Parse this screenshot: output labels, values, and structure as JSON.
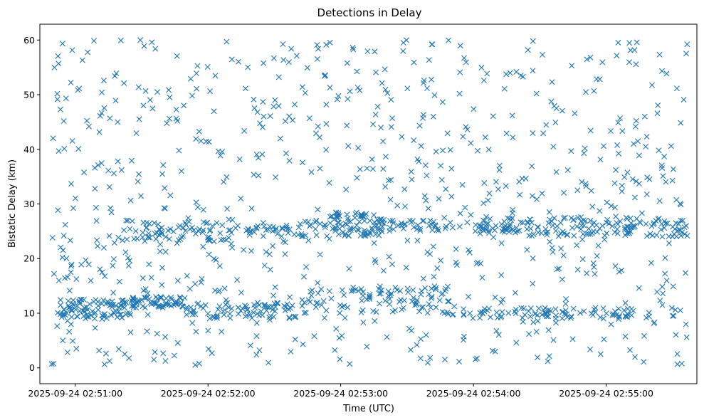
{
  "chart_data": {
    "type": "scatter",
    "title": "Detections in Delay",
    "xlabel": "Time (UTC)",
    "ylabel": "Bistatic Delay (km)",
    "marker": "x",
    "color": "#1f77b4",
    "grid": false,
    "xlim": [
      "2025-09-24 02:50:44",
      "2025-09-24 02:55:41"
    ],
    "ylim": [
      -2.9,
      62.9
    ],
    "x_ticks": [
      "2025-09-24 02:51:00",
      "2025-09-24 02:52:00",
      "2025-09-24 02:53:00",
      "2025-09-24 02:54:00",
      "2025-09-24 02:55:00"
    ],
    "y_ticks": [
      0,
      10,
      20,
      30,
      40,
      50,
      60
    ],
    "time_range": [
      "2025-09-24 02:50:49",
      "2025-09-24 02:55:37"
    ],
    "clusters": [
      {
        "t_range": [
          "2025-09-24 02:50:52",
          "2025-09-24 02:51:25"
        ],
        "delay_range": [
          9.0,
          12.5
        ],
        "count": 90
      },
      {
        "t_range": [
          "2025-09-24 02:51:25",
          "2025-09-24 02:51:50"
        ],
        "delay_range": [
          11.0,
          13.0
        ],
        "count": 60
      },
      {
        "t_range": [
          "2025-09-24 02:51:50",
          "2025-09-24 02:52:40"
        ],
        "delay_range": [
          9.0,
          12.0
        ],
        "count": 80
      },
      {
        "t_range": [
          "2025-09-24 02:52:40",
          "2025-09-24 02:53:50"
        ],
        "delay_range": [
          10.0,
          15.0
        ],
        "count": 90
      },
      {
        "t_range": [
          "2025-09-24 02:53:50",
          "2025-09-24 02:55:20"
        ],
        "delay_range": [
          9.0,
          11.0
        ],
        "count": 80
      },
      {
        "t_range": [
          "2025-09-24 02:51:20",
          "2025-09-24 02:52:10"
        ],
        "delay_range": [
          23.0,
          27.0
        ],
        "count": 70
      },
      {
        "t_range": [
          "2025-09-24 02:52:10",
          "2025-09-24 02:52:55"
        ],
        "delay_range": [
          24.0,
          27.0
        ],
        "count": 50
      },
      {
        "t_range": [
          "2025-09-24 02:52:55",
          "2025-09-24 02:53:20"
        ],
        "delay_range": [
          24.0,
          28.5
        ],
        "count": 80
      },
      {
        "t_range": [
          "2025-09-24 02:53:20",
          "2025-09-24 02:54:15"
        ],
        "delay_range": [
          25.0,
          27.0
        ],
        "count": 60
      },
      {
        "t_range": [
          "2025-09-24 02:54:15",
          "2025-09-24 02:55:37"
        ],
        "delay_range": [
          24.0,
          27.5
        ],
        "count": 140
      }
    ],
    "background": {
      "delay_range": [
        0.5,
        60.0
      ],
      "count": 780
    }
  }
}
